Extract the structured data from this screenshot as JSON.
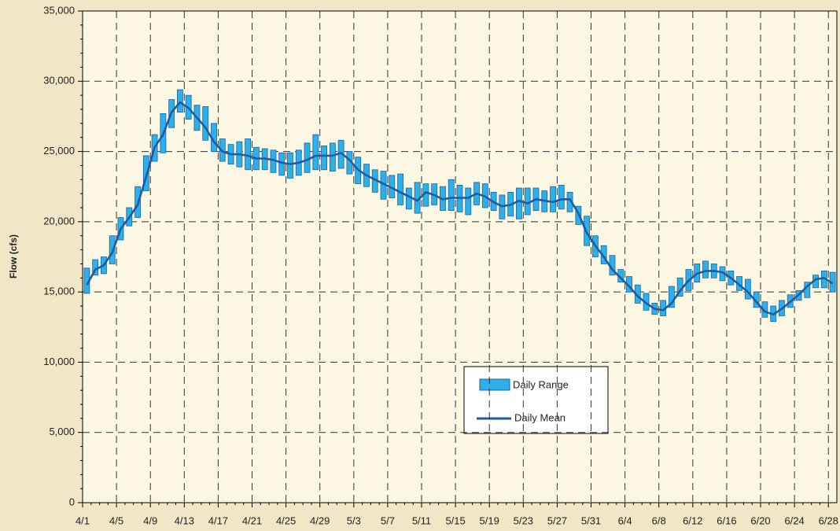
{
  "chart_data": {
    "type": "range-line",
    "y_label": "Flow (cfs)",
    "categories": [
      "4/1",
      null,
      null,
      null,
      "4/5",
      null,
      null,
      null,
      "4/9",
      null,
      null,
      null,
      "4/13",
      null,
      null,
      null,
      "4/17",
      null,
      null,
      null,
      "4/21",
      null,
      null,
      null,
      "4/25",
      null,
      null,
      null,
      "4/29",
      null,
      null,
      null,
      "5/3",
      null,
      null,
      null,
      "5/7",
      null,
      null,
      null,
      "5/11",
      null,
      null,
      null,
      "5/15",
      null,
      null,
      null,
      "5/19",
      null,
      null,
      null,
      "5/23",
      null,
      null,
      null,
      "5/27",
      null,
      null,
      null,
      "5/31",
      null,
      null,
      null,
      "6/4",
      null,
      null,
      null,
      "6/8",
      null,
      null,
      null,
      "6/12",
      null,
      null,
      null,
      "6/16",
      null,
      null,
      null,
      "6/20",
      null,
      null,
      null,
      "6/24",
      null,
      null,
      null,
      "6/28"
    ],
    "series": [
      {
        "name": "Daily Range",
        "color": "#2cb0ea",
        "edge": "#1b64a6",
        "low": [
          14900,
          16200,
          16300,
          17000,
          18700,
          19700,
          20300,
          22200,
          24300,
          24900,
          26700,
          27800,
          27300,
          26500,
          25800,
          25000,
          24300,
          24100,
          23900,
          23700,
          23700,
          23700,
          23500,
          23300,
          23100,
          23300,
          23500,
          23700,
          23700,
          23600,
          23800,
          23400,
          22700,
          22500,
          22100,
          21600,
          21700,
          21200,
          20900,
          20600,
          21100,
          21200,
          20800,
          20800,
          20700,
          20500,
          21200,
          21000,
          20800,
          20200,
          20400,
          20200,
          20500,
          20800,
          20700,
          20700,
          20900,
          20700,
          19800,
          18300,
          17500,
          17000,
          16200,
          15700,
          15000,
          14200,
          13700,
          13400,
          13300,
          13900,
          14700,
          15100,
          15700,
          16000,
          16000,
          15800,
          15500,
          15100,
          14500,
          13900,
          13200,
          12900,
          13300,
          13900,
          14400,
          14600,
          15300,
          15300,
          15000
        ],
        "high": [
          16700,
          17300,
          17500,
          19000,
          20300,
          21000,
          22500,
          24700,
          26200,
          27700,
          28700,
          29400,
          29000,
          28300,
          28200,
          27000,
          25900,
          25500,
          25700,
          25900,
          25300,
          25200,
          25100,
          24900,
          24900,
          25100,
          25600,
          26200,
          25400,
          25600,
          25800,
          25000,
          24600,
          24100,
          23700,
          23600,
          23300,
          23400,
          22400,
          22800,
          22700,
          22700,
          22500,
          23000,
          22600,
          22400,
          22800,
          22700,
          22100,
          21900,
          22100,
          22400,
          22400,
          22400,
          22200,
          22500,
          22600,
          22100,
          21100,
          20400,
          19000,
          18300,
          17600,
          16600,
          16100,
          15500,
          14900,
          14200,
          14400,
          15400,
          16000,
          16600,
          17000,
          17200,
          17000,
          16800,
          16500,
          16100,
          15900,
          15000,
          14300,
          14000,
          14400,
          14800,
          15100,
          15700,
          16200,
          16500,
          16400
        ]
      },
      {
        "name": "Daily Mean",
        "color": "#1f5ba5",
        "values": [
          15500,
          16600,
          16900,
          17800,
          19500,
          20300,
          21200,
          23200,
          25300,
          26200,
          27800,
          28500,
          28100,
          27400,
          26700,
          25700,
          25000,
          24800,
          24800,
          24700,
          24500,
          24500,
          24400,
          24200,
          24100,
          24200,
          24400,
          24700,
          24700,
          24700,
          24900,
          24400,
          23700,
          23300,
          23000,
          22700,
          22400,
          22100,
          21800,
          21500,
          22100,
          21900,
          21600,
          21700,
          21700,
          21700,
          22000,
          21800,
          21400,
          21100,
          21200,
          21500,
          21300,
          21600,
          21500,
          21400,
          21600,
          21600,
          20600,
          19200,
          18300,
          17500,
          16600,
          16000,
          15400,
          14700,
          14200,
          13800,
          13700,
          14200,
          15100,
          15800,
          16300,
          16500,
          16500,
          16400,
          16000,
          15500,
          15000,
          14300,
          13600,
          13400,
          13800,
          14300,
          14800,
          15400,
          15900,
          16000,
          15600
        ]
      }
    ],
    "ylim": [
      0,
      35000
    ],
    "yticks": [
      {
        "value": 0,
        "label": "0"
      },
      {
        "value": 5000,
        "label": "5,000"
      },
      {
        "value": 10000,
        "label": "10,000"
      },
      {
        "value": 15000,
        "label": "15,000"
      },
      {
        "value": 20000,
        "label": "20,000"
      },
      {
        "value": 25000,
        "label": "25,000"
      },
      {
        "value": 30000,
        "label": "30,000"
      },
      {
        "value": 35000,
        "label": "35,000"
      }
    ],
    "grid": true
  }
}
